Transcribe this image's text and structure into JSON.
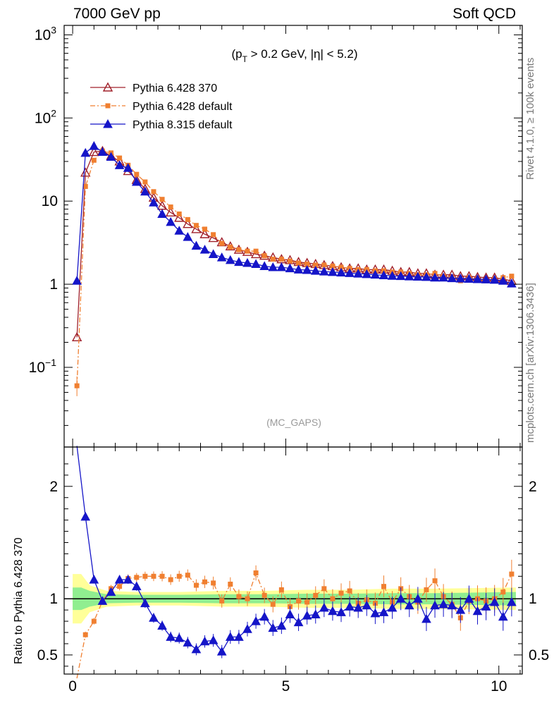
{
  "header": {
    "left_title": "7000 GeV pp",
    "right_title": "Soft QCD"
  },
  "side_labels": {
    "rivet": "Rivet 4.1.0, ≥ 100k events",
    "mcplots": "mcplots.cern.ch [arXiv:1306.3436]"
  },
  "chart_data": {
    "type": "line",
    "cut_label": "(p_T > 0.2 GeV, |η| < 5.2)",
    "watermark": "(MC_GAPS)",
    "x_range": [
      -0.2,
      10.55
    ],
    "main": {
      "yscale": "log",
      "ylim": [
        0.011,
        1300
      ],
      "yticks": [
        {
          "value": 0.1,
          "label": "10",
          "sup": "−1"
        },
        {
          "value": 1,
          "label": "1",
          "sup": ""
        },
        {
          "value": 10,
          "label": "10",
          "sup": ""
        },
        {
          "value": 100,
          "label": "10",
          "sup": "2"
        },
        {
          "value": 1000,
          "label": "10",
          "sup": "3"
        }
      ]
    },
    "ratio": {
      "ylabel": "Ratio to Pythia 6.428 370",
      "ylim": [
        0.33,
        2.35
      ],
      "yticks": [
        {
          "value": 0.5,
          "label": "0.5"
        },
        {
          "value": 1,
          "label": "1"
        },
        {
          "value": 2,
          "label": "2"
        }
      ],
      "band_inner_half_width": [
        0.1,
        0.1,
        0.07,
        0.04,
        0.035,
        0.035,
        0.04,
        0.04,
        0.045,
        0.045,
        0.05,
        0.05,
        0.06
      ],
      "band_outer_half_width": [
        0.22,
        0.22,
        0.12,
        0.07,
        0.06,
        0.06,
        0.07,
        0.07,
        0.08,
        0.08,
        0.09,
        0.09,
        0.1
      ],
      "band_x": [
        0.0,
        0.2,
        0.4,
        0.8,
        1.5,
        2.5,
        3.5,
        4.5,
        5.5,
        6.5,
        7.5,
        8.5,
        10.4
      ]
    },
    "xticks": [
      {
        "value": 0,
        "label": "0"
      },
      {
        "value": 5,
        "label": "5"
      },
      {
        "value": 10,
        "label": "10"
      }
    ],
    "legend": [
      {
        "name": "Pythia 6.428 370",
        "color": "#a0202a",
        "marker": "open-triangle",
        "dash": "solid"
      },
      {
        "name": "Pythia 6.428 default",
        "color": "#f07f30",
        "marker": "square",
        "dash": "dashdot"
      },
      {
        "name": "Pythia 8.315 default",
        "color": "#1515c8",
        "marker": "triangle",
        "dash": "solid"
      }
    ],
    "x": [
      0.1,
      0.3,
      0.5,
      0.7,
      0.9,
      1.1,
      1.3,
      1.5,
      1.7,
      1.9,
      2.1,
      2.3,
      2.5,
      2.7,
      2.9,
      3.1,
      3.3,
      3.5,
      3.7,
      3.9,
      4.1,
      4.3,
      4.5,
      4.7,
      4.9,
      5.1,
      5.3,
      5.5,
      5.7,
      5.9,
      6.1,
      6.3,
      6.5,
      6.7,
      6.9,
      7.1,
      7.3,
      7.5,
      7.7,
      7.9,
      8.1,
      8.3,
      8.5,
      8.7,
      8.9,
      9.1,
      9.3,
      9.5,
      9.7,
      9.9,
      10.1,
      10.3
    ],
    "series": [
      {
        "name": "Pythia 6.428 370",
        "values": [
          0.23,
          22,
          39,
          40,
          35,
          30,
          23,
          18,
          14,
          11,
          8.8,
          7.3,
          6.3,
          5.3,
          4.6,
          4.0,
          3.6,
          3.2,
          2.85,
          2.6,
          2.45,
          2.3,
          2.2,
          2.1,
          2.0,
          1.95,
          1.85,
          1.8,
          1.75,
          1.7,
          1.65,
          1.6,
          1.55,
          1.55,
          1.5,
          1.5,
          1.5,
          1.45,
          1.4,
          1.4,
          1.35,
          1.35,
          1.3,
          1.3,
          1.3,
          1.25,
          1.25,
          1.22,
          1.2,
          1.2,
          1.15,
          1.1
        ]
      },
      {
        "name": "Pythia 6.428 default",
        "values": [
          0.06,
          15,
          31,
          40,
          38,
          33,
          27,
          21,
          17,
          13,
          10.5,
          8.5,
          7.0,
          6.0,
          5.1,
          4.6,
          3.95,
          3.1,
          2.8,
          2.6,
          2.5,
          2.5,
          2.2,
          2.0,
          2.0,
          1.9,
          1.8,
          1.75,
          1.7,
          1.7,
          1.65,
          1.6,
          1.55,
          1.5,
          1.5,
          1.45,
          1.45,
          1.4,
          1.4,
          1.35,
          1.3,
          1.3,
          1.35,
          1.25,
          1.2,
          1.1,
          1.2,
          1.15,
          1.1,
          1.15,
          1.2,
          1.25
        ]
      },
      {
        "name": "Pythia 8.315 default",
        "values": [
          1.1,
          38,
          46,
          39,
          34,
          27,
          25,
          17,
          13,
          9.6,
          7.0,
          5.6,
          4.4,
          3.7,
          2.9,
          2.6,
          2.3,
          2.1,
          1.95,
          1.85,
          1.8,
          1.75,
          1.65,
          1.6,
          1.6,
          1.55,
          1.5,
          1.48,
          1.45,
          1.42,
          1.4,
          1.38,
          1.36,
          1.34,
          1.32,
          1.3,
          1.28,
          1.26,
          1.25,
          1.24,
          1.23,
          1.22,
          1.2,
          1.2,
          1.18,
          1.17,
          1.16,
          1.15,
          1.14,
          1.13,
          1.1,
          1.02
        ]
      }
    ],
    "ratio_series": [
      {
        "name": "Pythia 6.428 default",
        "values": [
          0.26,
          0.68,
          0.8,
          0.98,
          1.09,
          1.11,
          1.18,
          1.19,
          1.2,
          1.2,
          1.2,
          1.17,
          1.2,
          1.21,
          1.12,
          1.15,
          1.14,
          0.98,
          1.13,
          1.02,
          1.0,
          1.23,
          1.03,
          0.95,
          1.08,
          0.93,
          0.98,
          0.97,
          1.03,
          1.09,
          1.0,
          1.05,
          1.07,
          0.96,
          0.99,
          0.96,
          1.11,
          0.97,
          1.09,
          1.02,
          0.97,
          1.08,
          1.16,
          1.02,
          0.95,
          0.83,
          0.98,
          1.0,
          0.98,
          1.0,
          1.06,
          1.22
        ]
      },
      {
        "name": "Pythia 8.315 default",
        "values": [
          2.36,
          1.73,
          1.17,
          0.98,
          1.06,
          1.17,
          1.17,
          1.11,
          0.96,
          0.83,
          0.76,
          0.66,
          0.65,
          0.61,
          0.55,
          0.62,
          0.63,
          0.53,
          0.66,
          0.66,
          0.73,
          0.8,
          0.84,
          0.74,
          0.76,
          0.86,
          0.79,
          0.85,
          0.86,
          0.92,
          0.89,
          0.88,
          0.93,
          0.92,
          0.94,
          0.87,
          0.88,
          0.92,
          1.0,
          0.94,
          1.0,
          0.82,
          0.94,
          0.95,
          0.94,
          0.9,
          1.0,
          0.89,
          0.93,
          0.97,
          0.84,
          0.97
        ]
      }
    ]
  }
}
